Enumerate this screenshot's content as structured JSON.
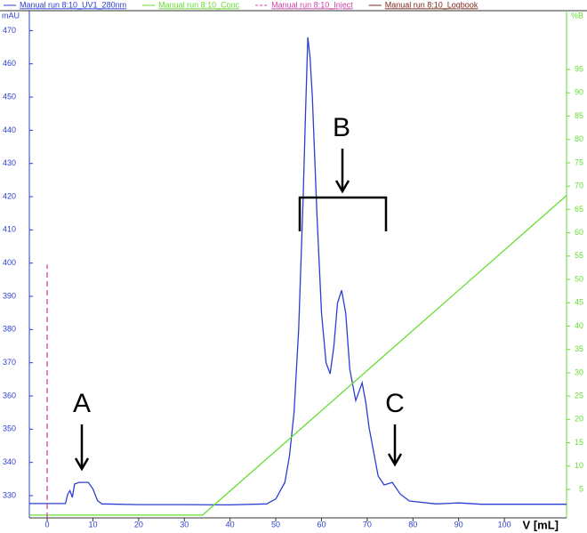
{
  "chart_data": {
    "type": "line",
    "y_label": "mAU",
    "y2_label": "%B",
    "x_label": "V [mL]",
    "xlim": [
      -3.9,
      113.6
    ],
    "xticks": [
      0,
      10,
      20,
      30,
      40,
      50,
      60,
      70,
      80,
      90,
      100
    ],
    "ylim": [
      323.3,
      476
    ],
    "yticks": [
      330,
      340,
      350,
      360,
      370,
      380,
      390,
      400,
      410,
      420,
      430,
      440,
      450,
      460,
      470
    ],
    "y2lim": [
      -1.1,
      107.6
    ],
    "y2ticks": [
      5,
      10,
      15,
      20,
      25,
      30,
      35,
      40,
      45,
      50,
      55,
      60,
      65,
      70,
      75,
      80,
      85,
      90,
      95
    ],
    "y_color": "#2a3fd0",
    "y2_color": "#66dd33",
    "series": [
      {
        "name": "Manual run 8:10_UV1_280nm",
        "color": "#2a3fd0",
        "x": [
          -3.9,
          2,
          4,
          4.5,
          5,
          5.5,
          6,
          7,
          9,
          10,
          11,
          12,
          20,
          30,
          40,
          48,
          50,
          52,
          53,
          54,
          55,
          56,
          56.5,
          57,
          57.5,
          58,
          59,
          60,
          61,
          61.9,
          62.7,
          63.5,
          64.4,
          65.3,
          66.2,
          67.5,
          68.9,
          69.7,
          70.4,
          72.4,
          73.7,
          75.5,
          77.2,
          79.2,
          85,
          90,
          95,
          113.6
        ],
        "values": [
          327.6,
          327.6,
          327.6,
          330.5,
          331.5,
          329.5,
          333.5,
          334,
          334,
          332,
          328.5,
          327.5,
          327.3,
          327.3,
          327.2,
          327.5,
          329,
          334,
          342,
          355,
          380,
          420,
          445,
          468,
          462,
          450,
          415,
          385,
          370,
          366.7,
          375,
          388,
          391.8,
          385,
          368,
          358.6,
          364,
          358,
          350.6,
          335.9,
          333.2,
          334,
          330.5,
          328.4,
          327.5,
          327.8,
          327.4,
          327.4
        ]
      },
      {
        "name": "Manual run 8:10_Conc",
        "color": "#66dd33",
        "axis": "y2",
        "x": [
          -3.9,
          34,
          113.6
        ],
        "values": [
          -0.5,
          -0.5,
          68
        ]
      },
      {
        "name": "Manual run 8:10_Inject",
        "color": "#cc44aa",
        "dashed": true,
        "x": [
          0,
          0
        ],
        "values": [
          323.3,
          399.6
        ]
      },
      {
        "name": "Manual run 8:10_Logbook",
        "color": "#7a2a1a"
      }
    ],
    "annotations": [
      "A",
      "B",
      "C"
    ]
  }
}
